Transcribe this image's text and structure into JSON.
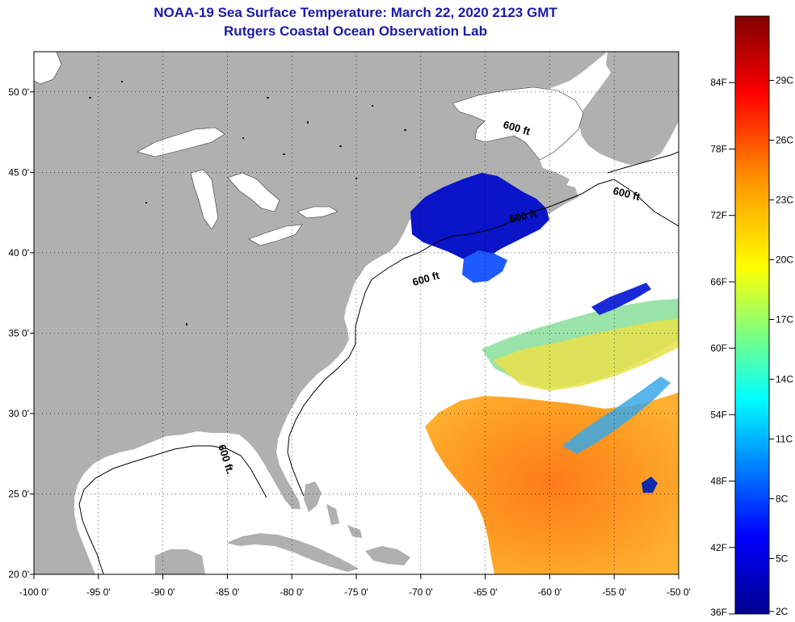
{
  "title_line1": "NOAA-19 Sea Surface Temperature:  March 22, 2020 2123 GMT",
  "title_line2": "Rutgers Coastal Ocean Observation Lab",
  "map": {
    "lon_ticks": [
      "-100 0'",
      "-95 0'",
      "-90 0'",
      "-85 0'",
      "-80 0'",
      "-75 0'",
      "-70 0'",
      "-65 0'",
      "-60 0'",
      "-55 0'",
      "-50 0'"
    ],
    "lat_ticks": [
      "50 0'",
      "45 0'",
      "40 0'",
      "35 0'",
      "30 0'",
      "25 0'",
      "20 0'"
    ],
    "lon_range": [
      -100,
      -50
    ],
    "lat_range": [
      20,
      52.5
    ],
    "isobath_labels": [
      "600 ft",
      "600 ft",
      "600 ft",
      "600 ft",
      "600 ft."
    ]
  },
  "colorbar": {
    "fahrenheit_labels": [
      "84F",
      "78F",
      "72F",
      "66F",
      "60F",
      "54F",
      "48F",
      "42F",
      "36F"
    ],
    "celsius_labels": [
      "29C",
      "26C",
      "23C",
      "20C",
      "17C",
      "14C",
      "11C",
      "8C",
      "5C",
      "2C"
    ]
  },
  "colors": {
    "land": "#b0b0b0",
    "ocean": "#ffffff",
    "title": "#1a1aa8"
  }
}
